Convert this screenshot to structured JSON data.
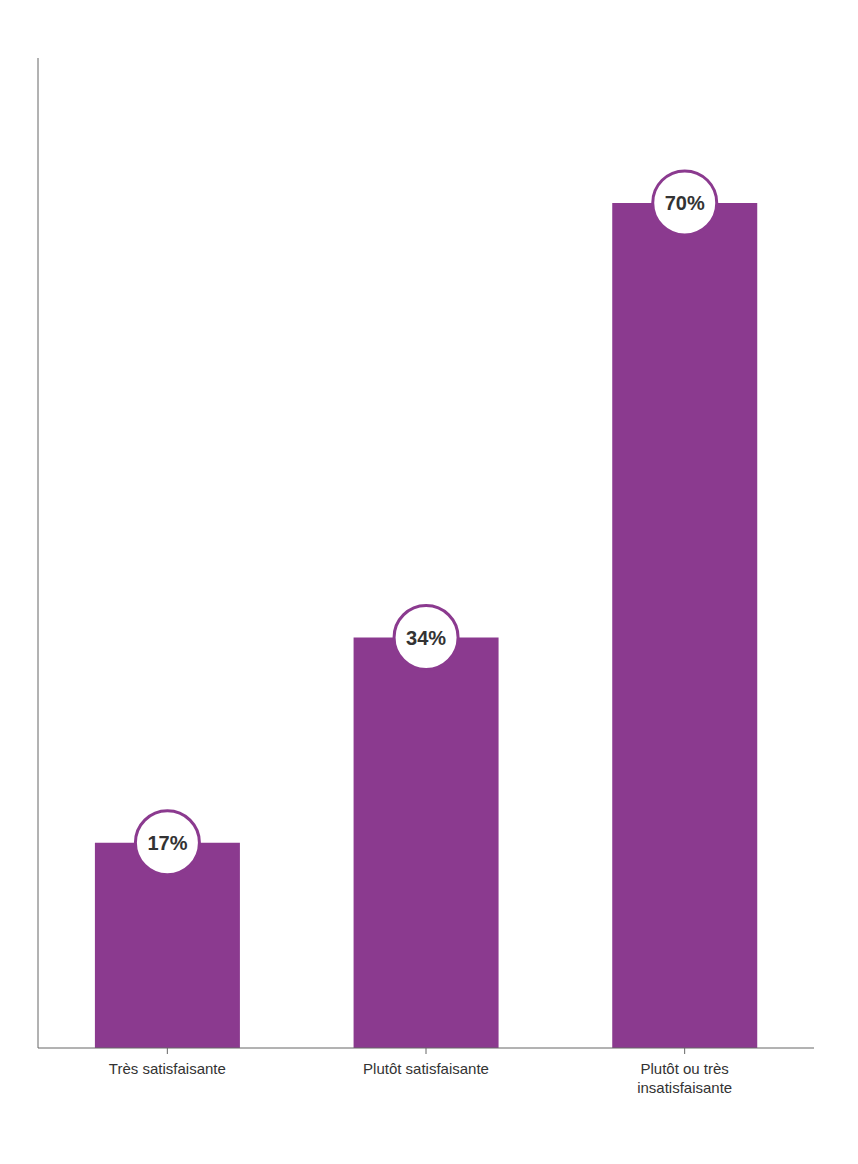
{
  "chart_data": {
    "type": "bar",
    "categories": [
      "Très satisfaisante",
      "Plutôt satisfaisante",
      "Plutôt ou très\ninsatisfaisante"
    ],
    "values": [
      17,
      34,
      70
    ],
    "value_labels": [
      "17%",
      "34%",
      "70%"
    ],
    "color": "#8B3A8F",
    "ylim": [
      0,
      82
    ],
    "grid": false,
    "data_labels": true,
    "tick_labels": "x"
  }
}
